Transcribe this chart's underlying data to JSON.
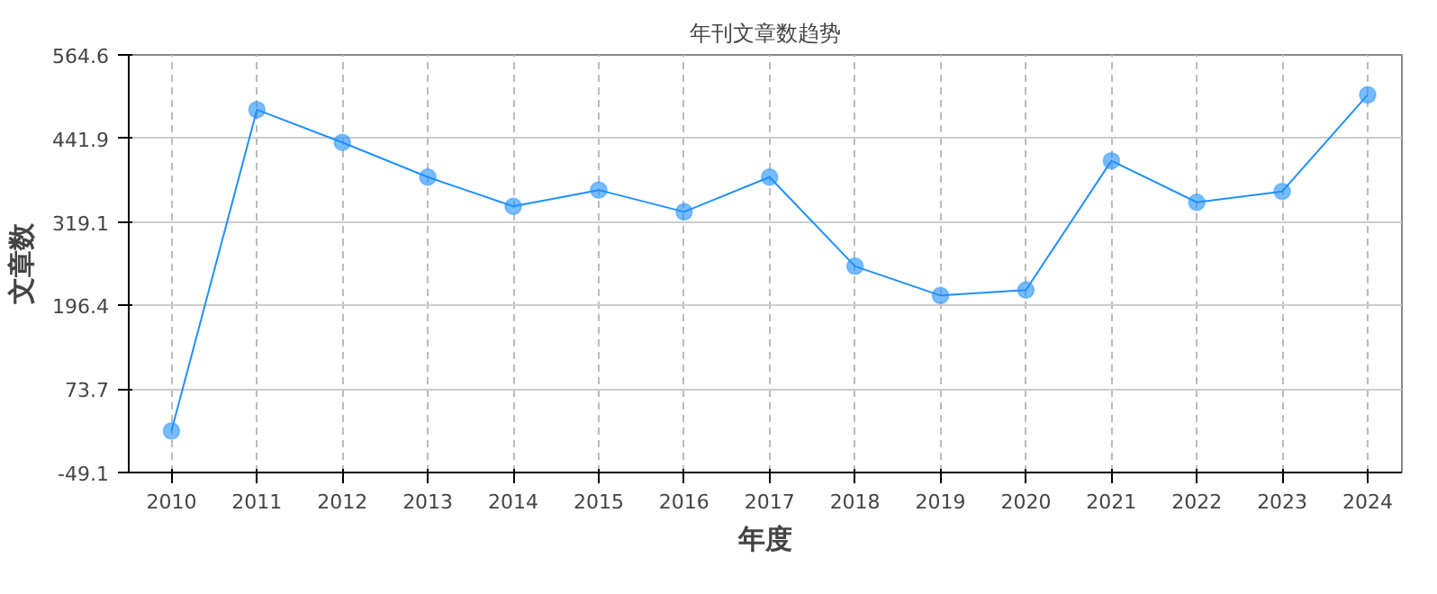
{
  "chart_data": {
    "type": "line",
    "title": "年刊文章数趋势",
    "xlabel": "年度",
    "ylabel": "文章数",
    "categories": [
      "2010",
      "2011",
      "2012",
      "2013",
      "2014",
      "2015",
      "2016",
      "2017",
      "2018",
      "2019",
      "2020",
      "2021",
      "2022",
      "2023",
      "2024"
    ],
    "series": [
      {
        "color": "#1e90ff",
        "values": [
          12,
          484,
          436,
          385,
          342,
          366,
          334,
          385,
          254,
          211,
          219,
          409,
          348,
          364,
          506
        ]
      }
    ],
    "ylim": [
      -49.1,
      564.6
    ],
    "yticks": [
      -49.1,
      73.7,
      196.4,
      319.1,
      441.9,
      564.6
    ],
    "grid": true,
    "marker": "circle",
    "line_style": "solid"
  }
}
